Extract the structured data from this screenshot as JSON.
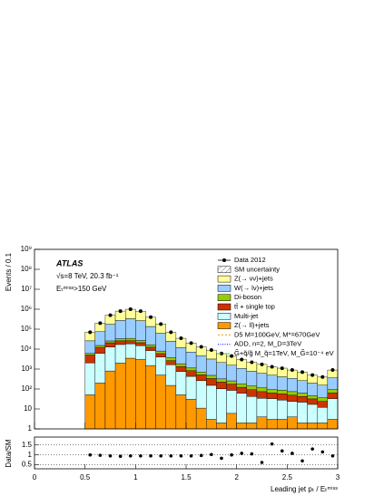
{
  "chart_data": {
    "type": "histogram",
    "label_atlas": "ATLAS",
    "label_energy": "√s=8 TeV, 20.3 fb⁻¹",
    "label_cut": "Eₜᵐⁱˢˢ>150 GeV",
    "y_label": "Events / 0.1",
    "ratio_label": "Data/SM",
    "x_label": "Leading jet pₜ / Eₜᵐⁱˢˢ",
    "log_y": true,
    "bins": [
      0.5,
      0.6,
      0.7,
      0.8,
      0.9,
      1.0,
      1.1,
      1.2,
      1.3,
      1.4,
      1.5,
      1.6,
      1.7,
      1.8,
      1.9,
      2.0,
      2.1,
      2.2,
      2.3,
      2.4,
      2.5,
      2.6,
      2.7,
      2.8,
      2.9,
      3.0
    ],
    "xlim": [
      0,
      3
    ],
    "xticks": [
      0,
      0.5,
      1,
      1.5,
      2,
      2.5,
      3
    ],
    "ylim": [
      1,
      1000000000
    ],
    "yticks": [
      1,
      10,
      {
        "value": 100,
        "label": "10²"
      },
      {
        "value": 1000,
        "label": "10³"
      },
      {
        "value": 10000,
        "label": "10⁴"
      },
      {
        "value": 100000,
        "label": "10⁵"
      },
      {
        "value": 1000000,
        "label": "10⁶"
      },
      {
        "value": 10000000,
        "label": "10⁷"
      },
      {
        "value": 100000000,
        "label": "10⁸"
      },
      {
        "value": 1000000000,
        "label": "10⁹"
      }
    ],
    "data": {
      "name": "Data 2012",
      "color": "#000000",
      "values": [
        70000,
        200000,
        500000,
        800000,
        1000000,
        800000,
        400000,
        180000,
        70000,
        35000,
        20000,
        13000,
        9000,
        6000,
        4500,
        3000,
        2200,
        1700,
        1300,
        1100,
        900,
        700,
        500,
        400,
        900
      ]
    },
    "uncertainty": {
      "name": "SM uncertainty"
    },
    "series": [
      {
        "name": "Z(→ ll)+jets",
        "color": "#ff9900",
        "values": [
          50,
          200,
          800,
          2000,
          3500,
          3000,
          1500,
          500,
          150,
          50,
          30,
          10,
          2,
          1,
          5,
          1,
          1,
          3,
          2,
          2,
          3,
          1,
          1,
          1,
          2
        ]
      },
      {
        "name": "Multi-jet",
        "color": "#ccffff",
        "values": [
          2000,
          6000,
          12000,
          15000,
          15000,
          12000,
          7000,
          3500,
          1500,
          700,
          400,
          250,
          150,
          100,
          80,
          60,
          40,
          30,
          30,
          25,
          20,
          20,
          15,
          10,
          30
        ]
      },
      {
        "name": "tt̄ + single top",
        "color": "#cc3300",
        "values": [
          3000,
          6000,
          8000,
          9000,
          8000,
          6000,
          4000,
          2000,
          1000,
          600,
          400,
          250,
          180,
          120,
          90,
          60,
          50,
          40,
          30,
          30,
          25,
          20,
          15,
          12,
          30
        ]
      },
      {
        "name": "Di-boson",
        "color": "#99cc00",
        "values": [
          1000,
          3000,
          5000,
          7000,
          8000,
          6000,
          4000,
          2000,
          1000,
          500,
          300,
          200,
          150,
          100,
          80,
          60,
          50,
          40,
          30,
          30,
          25,
          20,
          15,
          12,
          30
        ]
      },
      {
        "name": "W(→ lν)+jets",
        "color": "#99ccff",
        "values": [
          20000,
          60000,
          150000,
          240000,
          300000,
          240000,
          120000,
          54000,
          21000,
          10000,
          6000,
          4000,
          2700,
          1800,
          1300,
          900,
          650,
          500,
          400,
          320,
          270,
          200,
          150,
          120,
          270
        ]
      },
      {
        "name": "Z(→ νν)+jets",
        "color": "#ffff99",
        "values": [
          44000,
          125000,
          330000,
          530000,
          660000,
          530000,
          260000,
          120000,
          45000,
          23000,
          13000,
          8300,
          5700,
          3800,
          2800,
          1900,
          1400,
          1100,
          800,
          700,
          550,
          440,
          300,
          240,
          530
        ]
      }
    ],
    "signals": [
      {
        "name": "D5 M=100GeV, M*=670GeV",
        "color": "#ff9900",
        "dash": "2,2"
      },
      {
        "name": "ADD, n=2, M_D=3TeV",
        "color": "#0000ff",
        "dash": "1,1.5"
      },
      {
        "name": "G̃+q̃/g̃ M_q̃=1TeV, M_G̃=10⁻⁴ eV",
        "color": "#33cc33",
        "dash": "4,2,1,2"
      }
    ],
    "ratio": {
      "values": [
        1.0,
        0.98,
        0.95,
        0.93,
        0.95,
        0.95,
        0.95,
        0.95,
        0.95,
        0.95,
        0.95,
        0.97,
        1.02,
        0.83,
        1.0,
        1.08,
        1.05,
        0.62,
        1.55,
        1.2,
        1.08,
        0.7,
        1.3,
        1.15,
        0.95
      ],
      "ylim": [
        0.3,
        1.9
      ],
      "yticks": [
        0.5,
        1,
        1.5
      ],
      "grid": true
    }
  }
}
